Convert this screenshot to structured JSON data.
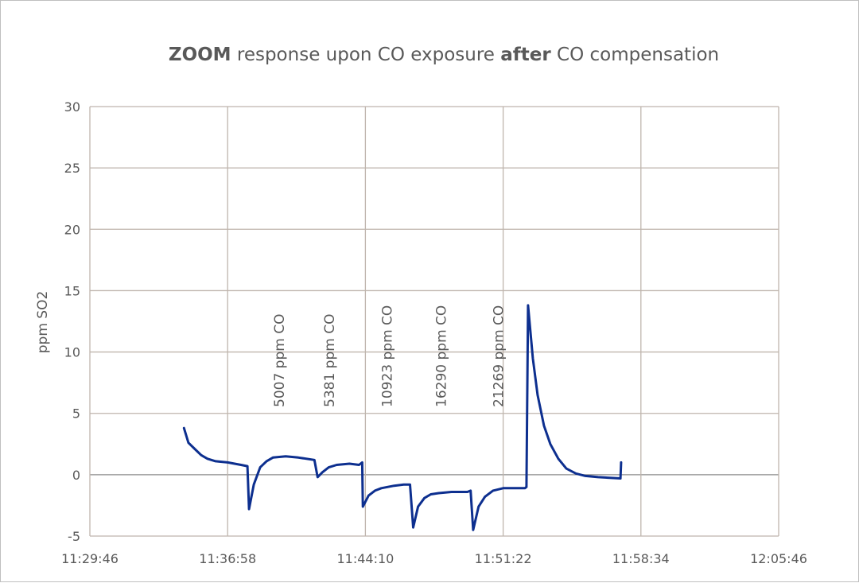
{
  "chart_data": {
    "type": "line",
    "title_parts": [
      {
        "text": "ZOOM",
        "bold": true
      },
      {
        "text": " response upon CO exposure ",
        "bold": false
      },
      {
        "text": "after",
        "bold": true
      },
      {
        "text": " CO compensation",
        "bold": false
      }
    ],
    "xlabel": "",
    "ylabel": "ppm SO2",
    "x_tick_labels": [
      "11:29:46",
      "11:36:58",
      "11:44:10",
      "11:51:22",
      "11:58:34",
      "12:05:46"
    ],
    "x_tick_values": [
      "11:29:46",
      "11:36:58",
      "11:44:10",
      "11:51:22",
      "11:58:34",
      "12:05:46"
    ],
    "xlim": [
      "11:29:46",
      "12:05:46"
    ],
    "ylim": [
      -5,
      30
    ],
    "y_ticks": [
      -5,
      0,
      5,
      10,
      15,
      20,
      25,
      30
    ],
    "grid": true,
    "legend": "none",
    "series_color": "#0d2f8f",
    "annotations": [
      {
        "text": "5007 ppm CO",
        "x": "11:39:55"
      },
      {
        "text": "5381 ppm CO",
        "x": "11:42:32"
      },
      {
        "text": "10923 ppm CO",
        "x": "11:45:33"
      },
      {
        "text": "16290 ppm CO",
        "x": "11:48:22"
      },
      {
        "text": "21269 ppm CO",
        "x": "11:51:22"
      }
    ],
    "series": [
      {
        "points": [
          [
            "11:34:41",
            3.8
          ],
          [
            "11:34:55",
            2.6
          ],
          [
            "11:35:15",
            2.1
          ],
          [
            "11:35:35",
            1.6
          ],
          [
            "11:35:55",
            1.3
          ],
          [
            "11:36:20",
            1.1
          ],
          [
            "11:36:58",
            1.0
          ],
          [
            "11:37:40",
            0.8
          ],
          [
            "11:38:00",
            0.7
          ],
          [
            "11:38:05",
            -2.8
          ],
          [
            "11:38:20",
            -0.8
          ],
          [
            "11:38:40",
            0.6
          ],
          [
            "11:39:00",
            1.1
          ],
          [
            "11:39:20",
            1.4
          ],
          [
            "11:40:00",
            1.5
          ],
          [
            "11:40:40",
            1.4
          ],
          [
            "11:41:30",
            1.2
          ],
          [
            "11:41:40",
            -0.2
          ],
          [
            "11:41:55",
            0.2
          ],
          [
            "11:42:15",
            0.6
          ],
          [
            "11:42:40",
            0.8
          ],
          [
            "11:43:20",
            0.9
          ],
          [
            "11:43:50",
            0.8
          ],
          [
            "11:44:00",
            1.0
          ],
          [
            "11:44:02",
            -2.6
          ],
          [
            "11:44:20",
            -1.7
          ],
          [
            "11:44:40",
            -1.3
          ],
          [
            "11:45:00",
            -1.1
          ],
          [
            "11:45:40",
            -0.9
          ],
          [
            "11:46:10",
            -0.8
          ],
          [
            "11:46:30",
            -0.8
          ],
          [
            "11:46:40",
            -4.3
          ],
          [
            "11:46:55",
            -2.6
          ],
          [
            "11:47:15",
            -1.9
          ],
          [
            "11:47:35",
            -1.6
          ],
          [
            "11:48:00",
            -1.5
          ],
          [
            "11:48:40",
            -1.4
          ],
          [
            "11:49:30",
            -1.4
          ],
          [
            "11:49:40",
            -1.3
          ],
          [
            "11:49:48",
            -4.5
          ],
          [
            "11:50:05",
            -2.6
          ],
          [
            "11:50:25",
            -1.8
          ],
          [
            "11:50:50",
            -1.3
          ],
          [
            "11:51:22",
            -1.1
          ],
          [
            "11:52:00",
            -1.1
          ],
          [
            "11:52:30",
            -1.1
          ],
          [
            "11:52:35",
            -1.0
          ],
          [
            "11:52:40",
            13.8
          ],
          [
            "11:52:55",
            9.5
          ],
          [
            "11:53:10",
            6.5
          ],
          [
            "11:53:30",
            4.0
          ],
          [
            "11:53:50",
            2.5
          ],
          [
            "11:54:15",
            1.3
          ],
          [
            "11:54:40",
            0.5
          ],
          [
            "11:55:10",
            0.1
          ],
          [
            "11:55:40",
            -0.1
          ],
          [
            "11:56:20",
            -0.2
          ],
          [
            "11:57:30",
            -0.3
          ],
          [
            "11:57:32",
            1.0
          ]
        ]
      }
    ]
  }
}
